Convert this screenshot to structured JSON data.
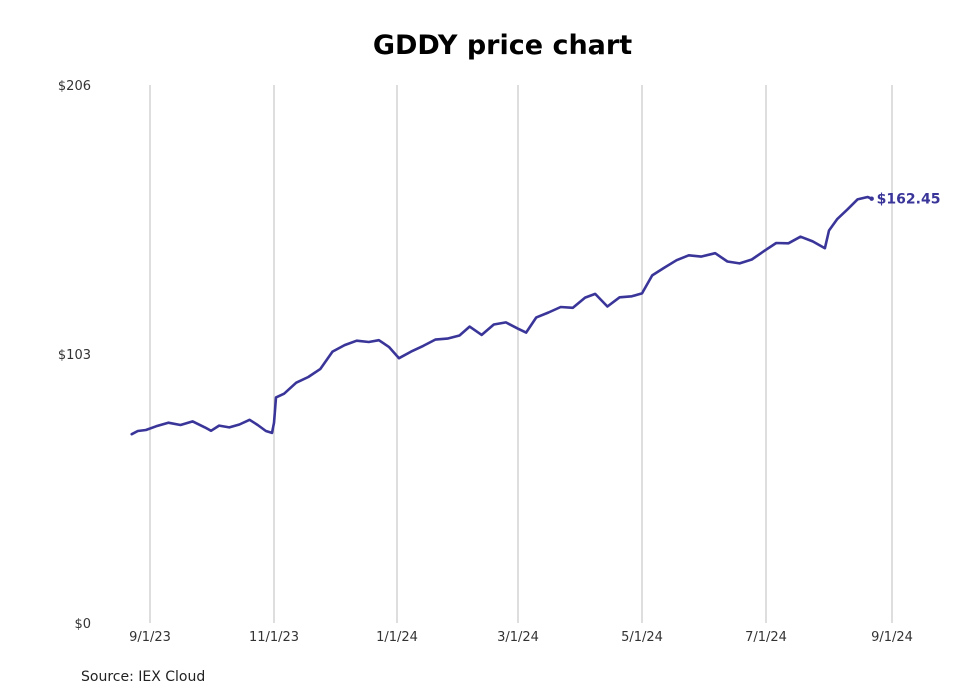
{
  "chart_data": {
    "type": "line",
    "title": "GDDY price chart",
    "xlabel": "",
    "ylabel": "",
    "y_ticks": [
      {
        "value": 0,
        "label": "$0"
      },
      {
        "value": 103,
        "label": "$103"
      },
      {
        "value": 206,
        "label": "$206"
      }
    ],
    "ylim": [
      0,
      206
    ],
    "xlim": [
      "2023-08-23",
      "2024-09-01"
    ],
    "x_ticks": [
      {
        "date": "2023-09-01",
        "label": "9/1/23"
      },
      {
        "date": "2023-11-01",
        "label": "11/1/23"
      },
      {
        "date": "2024-01-01",
        "label": "1/1/24"
      },
      {
        "date": "2024-03-01",
        "label": "3/1/24"
      },
      {
        "date": "2024-05-01",
        "label": "5/1/24"
      },
      {
        "date": "2024-07-01",
        "label": "7/1/24"
      },
      {
        "date": "2024-09-01",
        "label": "9/1/24"
      }
    ],
    "grid": "vertical",
    "line_color": "#3a3599",
    "last_value_label": "$162.45",
    "series": [
      {
        "points": [
          [
            "2023-08-23",
            72.3
          ],
          [
            "2023-08-26",
            73.5
          ],
          [
            "2023-08-30",
            73.9
          ],
          [
            "2023-09-04",
            75.3
          ],
          [
            "2023-09-10",
            76.7
          ],
          [
            "2023-09-16",
            75.8
          ],
          [
            "2023-09-22",
            77.2
          ],
          [
            "2023-09-28",
            74.9
          ],
          [
            "2023-10-01",
            73.6
          ],
          [
            "2023-10-05",
            75.6
          ],
          [
            "2023-10-10",
            74.9
          ],
          [
            "2023-10-15",
            76.0
          ],
          [
            "2023-10-20",
            77.8
          ],
          [
            "2023-10-24",
            75.8
          ],
          [
            "2023-10-28",
            73.5
          ],
          [
            "2023-10-31",
            72.8
          ],
          [
            "2023-11-01",
            76.6
          ],
          [
            "2023-11-02",
            86.4
          ],
          [
            "2023-11-06",
            87.8
          ],
          [
            "2023-11-12",
            92.0
          ],
          [
            "2023-11-18",
            94.2
          ],
          [
            "2023-11-24",
            97.3
          ],
          [
            "2023-11-30",
            103.9
          ],
          [
            "2023-12-06",
            106.4
          ],
          [
            "2023-12-12",
            108.1
          ],
          [
            "2023-12-18",
            107.6
          ],
          [
            "2023-12-23",
            108.3
          ],
          [
            "2023-12-28",
            105.7
          ],
          [
            "2024-01-02",
            101.4
          ],
          [
            "2024-01-08",
            103.9
          ],
          [
            "2024-01-14",
            106.1
          ],
          [
            "2024-01-20",
            108.5
          ],
          [
            "2024-01-26",
            108.9
          ],
          [
            "2024-02-01",
            110.1
          ],
          [
            "2024-02-06",
            113.5
          ],
          [
            "2024-02-12",
            110.3
          ],
          [
            "2024-02-18",
            114.3
          ],
          [
            "2024-02-24",
            115.1
          ],
          [
            "2024-03-01",
            112.7
          ],
          [
            "2024-03-05",
            111.2
          ],
          [
            "2024-03-10",
            117.0
          ],
          [
            "2024-03-16",
            118.9
          ],
          [
            "2024-03-22",
            121.0
          ],
          [
            "2024-03-28",
            120.7
          ],
          [
            "2024-04-03",
            124.6
          ],
          [
            "2024-04-08",
            126.0
          ],
          [
            "2024-04-14",
            121.2
          ],
          [
            "2024-04-20",
            124.7
          ],
          [
            "2024-04-26",
            125.1
          ],
          [
            "2024-05-01",
            126.2
          ],
          [
            "2024-05-06",
            133.1
          ],
          [
            "2024-05-12",
            136.1
          ],
          [
            "2024-05-18",
            138.9
          ],
          [
            "2024-05-24",
            140.8
          ],
          [
            "2024-05-30",
            140.3
          ],
          [
            "2024-06-06",
            141.6
          ],
          [
            "2024-06-12",
            138.4
          ],
          [
            "2024-06-18",
            137.7
          ],
          [
            "2024-06-24",
            139.2
          ],
          [
            "2024-06-30",
            142.4
          ],
          [
            "2024-07-06",
            145.5
          ],
          [
            "2024-07-12",
            145.4
          ],
          [
            "2024-07-18",
            147.9
          ],
          [
            "2024-07-24",
            146.1
          ],
          [
            "2024-07-30",
            143.5
          ],
          [
            "2024-08-01",
            150.3
          ],
          [
            "2024-08-05",
            154.6
          ],
          [
            "2024-08-10",
            158.3
          ],
          [
            "2024-08-15",
            162.2
          ],
          [
            "2024-08-20",
            163.1
          ],
          [
            "2024-08-22",
            162.45
          ]
        ]
      }
    ]
  },
  "source": "Source: IEX Cloud"
}
